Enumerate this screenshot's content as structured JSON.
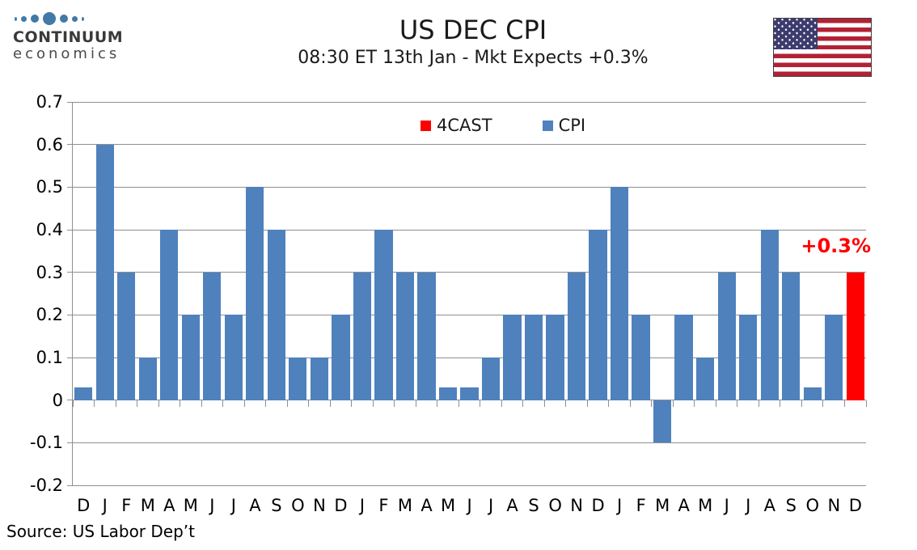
{
  "logo": {
    "line1": "CONTINUUM",
    "line2": "economics"
  },
  "header": {
    "title": "US DEC CPI",
    "subtitle": "08:30 ET 13th Jan - Mkt Expects +0.3%"
  },
  "footer": {
    "source": "Source: US Labor Dep’t"
  },
  "chart_data": {
    "type": "bar",
    "title": "US DEC CPI",
    "subtitle": "08:30 ET 13th Jan - Mkt Expects +0.3%",
    "xlabel": "",
    "ylabel": "",
    "ylim": [
      -0.2,
      0.7
    ],
    "grid": true,
    "legend_position": "top-center",
    "yticks": [
      "0.7",
      "0.6",
      "0.5",
      "0.4",
      "0.3",
      "0.2",
      "0.1",
      "0",
      "-0.1",
      "-0.2"
    ],
    "categories": [
      "D",
      "J",
      "F",
      "M",
      "A",
      "M",
      "J",
      "J",
      "A",
      "S",
      "O",
      "N",
      "D",
      "J",
      "F",
      "M",
      "A",
      "M",
      "J",
      "J",
      "A",
      "S",
      "O",
      "N",
      "D",
      "J",
      "F",
      "M",
      "A",
      "M",
      "J",
      "J",
      "A",
      "S",
      "O",
      "N",
      "D"
    ],
    "series": [
      {
        "name": "4CAST",
        "color": "#FF0000",
        "values": [
          null,
          null,
          null,
          null,
          null,
          null,
          null,
          null,
          null,
          null,
          null,
          null,
          null,
          null,
          null,
          null,
          null,
          null,
          null,
          null,
          null,
          null,
          null,
          null,
          null,
          null,
          null,
          null,
          null,
          null,
          null,
          null,
          null,
          null,
          null,
          null,
          0.3
        ]
      },
      {
        "name": "CPI",
        "color": "#4F81BD",
        "values": [
          0.03,
          0.6,
          0.3,
          0.1,
          0.4,
          0.2,
          0.3,
          0.2,
          0.5,
          0.4,
          0.1,
          0.1,
          0.2,
          0.3,
          0.4,
          0.3,
          0.3,
          0.03,
          0.03,
          0.1,
          0.2,
          0.2,
          0.2,
          0.3,
          0.4,
          0.5,
          0.2,
          -0.1,
          0.2,
          0.1,
          0.3,
          0.2,
          0.4,
          0.3,
          0.03,
          0.2,
          null
        ]
      }
    ],
    "annotation": {
      "text": "+0.3%",
      "color": "#FF0000"
    },
    "axis_color": "#8f8f8f"
  }
}
